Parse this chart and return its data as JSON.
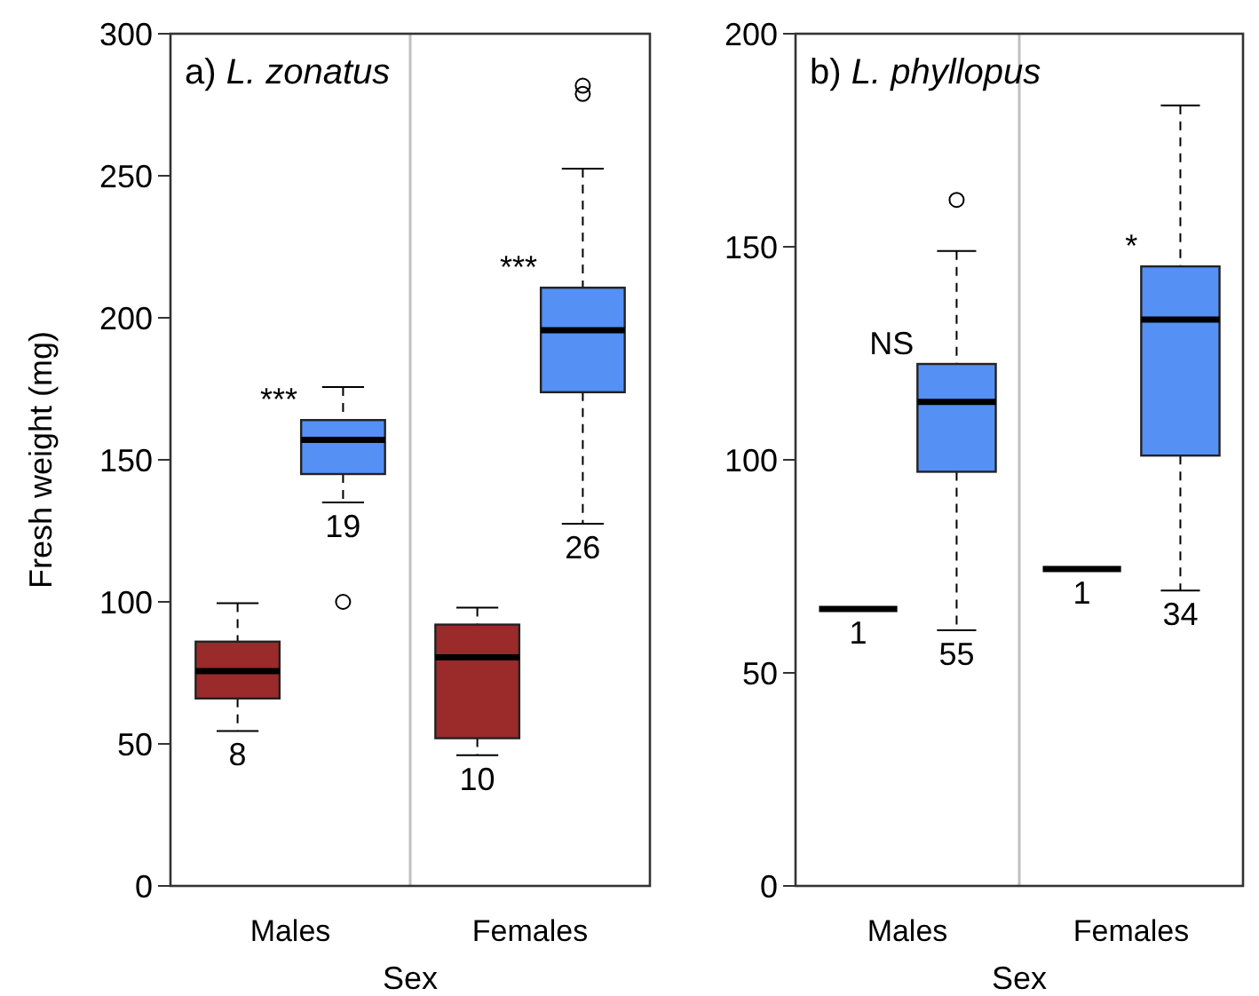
{
  "chart_data": [
    {
      "type": "box",
      "title": "a) L. zonatus",
      "xlabel": "Sex",
      "ylabel": "Fresh weight (mg)",
      "categories": [
        "Males",
        "Females"
      ],
      "ylim": [
        0,
        300
      ],
      "yticks": [
        0,
        50,
        100,
        150,
        200,
        250,
        300
      ],
      "series": [
        {
          "color": "#9b2a2a",
          "boxes": [
            {
              "low": 54.5,
              "q1": 66,
              "median": 75.6,
              "q3": 86,
              "high": 99.5
            },
            {
              "low": 46,
              "q1": 52,
              "median": 80.5,
              "q3": 92,
              "high": 98
            }
          ]
        },
        {
          "color": "#5590f5",
          "boxes": [
            {
              "low": 135,
              "q1": 145,
              "median": 157,
              "q3": 164,
              "high": 175.6,
              "outliers": [
                100
              ]
            },
            {
              "low": 127.5,
              "q1": 173.8,
              "median": 195.6,
              "q3": 210.6,
              "high": 252.5,
              "outliers": [
                278.8,
                281.7
              ]
            }
          ]
        }
      ],
      "annotations": [
        "8",
        "10",
        "19",
        "26",
        "***",
        "***"
      ]
    },
    {
      "type": "box",
      "title": "b) L. phyllopus",
      "xlabel": "Sex",
      "categories": [
        "Males",
        "Females"
      ],
      "ylim": [
        0,
        200
      ],
      "yticks": [
        0,
        50,
        100,
        150,
        200
      ],
      "series": [
        {
          "color": "#000000",
          "boxes": [
            {
              "low": 65,
              "q1": 65,
              "median": 65,
              "q3": 65,
              "high": 65
            },
            {
              "low": 74.4,
              "q1": 74.4,
              "median": 74.4,
              "q3": 74.4,
              "high": 74.4
            }
          ]
        },
        {
          "color": "#5590f5",
          "boxes": [
            {
              "low": 60,
              "q1": 97.2,
              "median": 113.6,
              "q3": 122.5,
              "high": 149,
              "outliers": [
                161
              ]
            },
            {
              "low": 69.3,
              "q1": 101,
              "median": 132.9,
              "q3": 145.4,
              "high": 183.2
            }
          ]
        }
      ],
      "annotations": [
        "1",
        "1",
        "55",
        "34",
        "NS",
        "*"
      ]
    }
  ]
}
